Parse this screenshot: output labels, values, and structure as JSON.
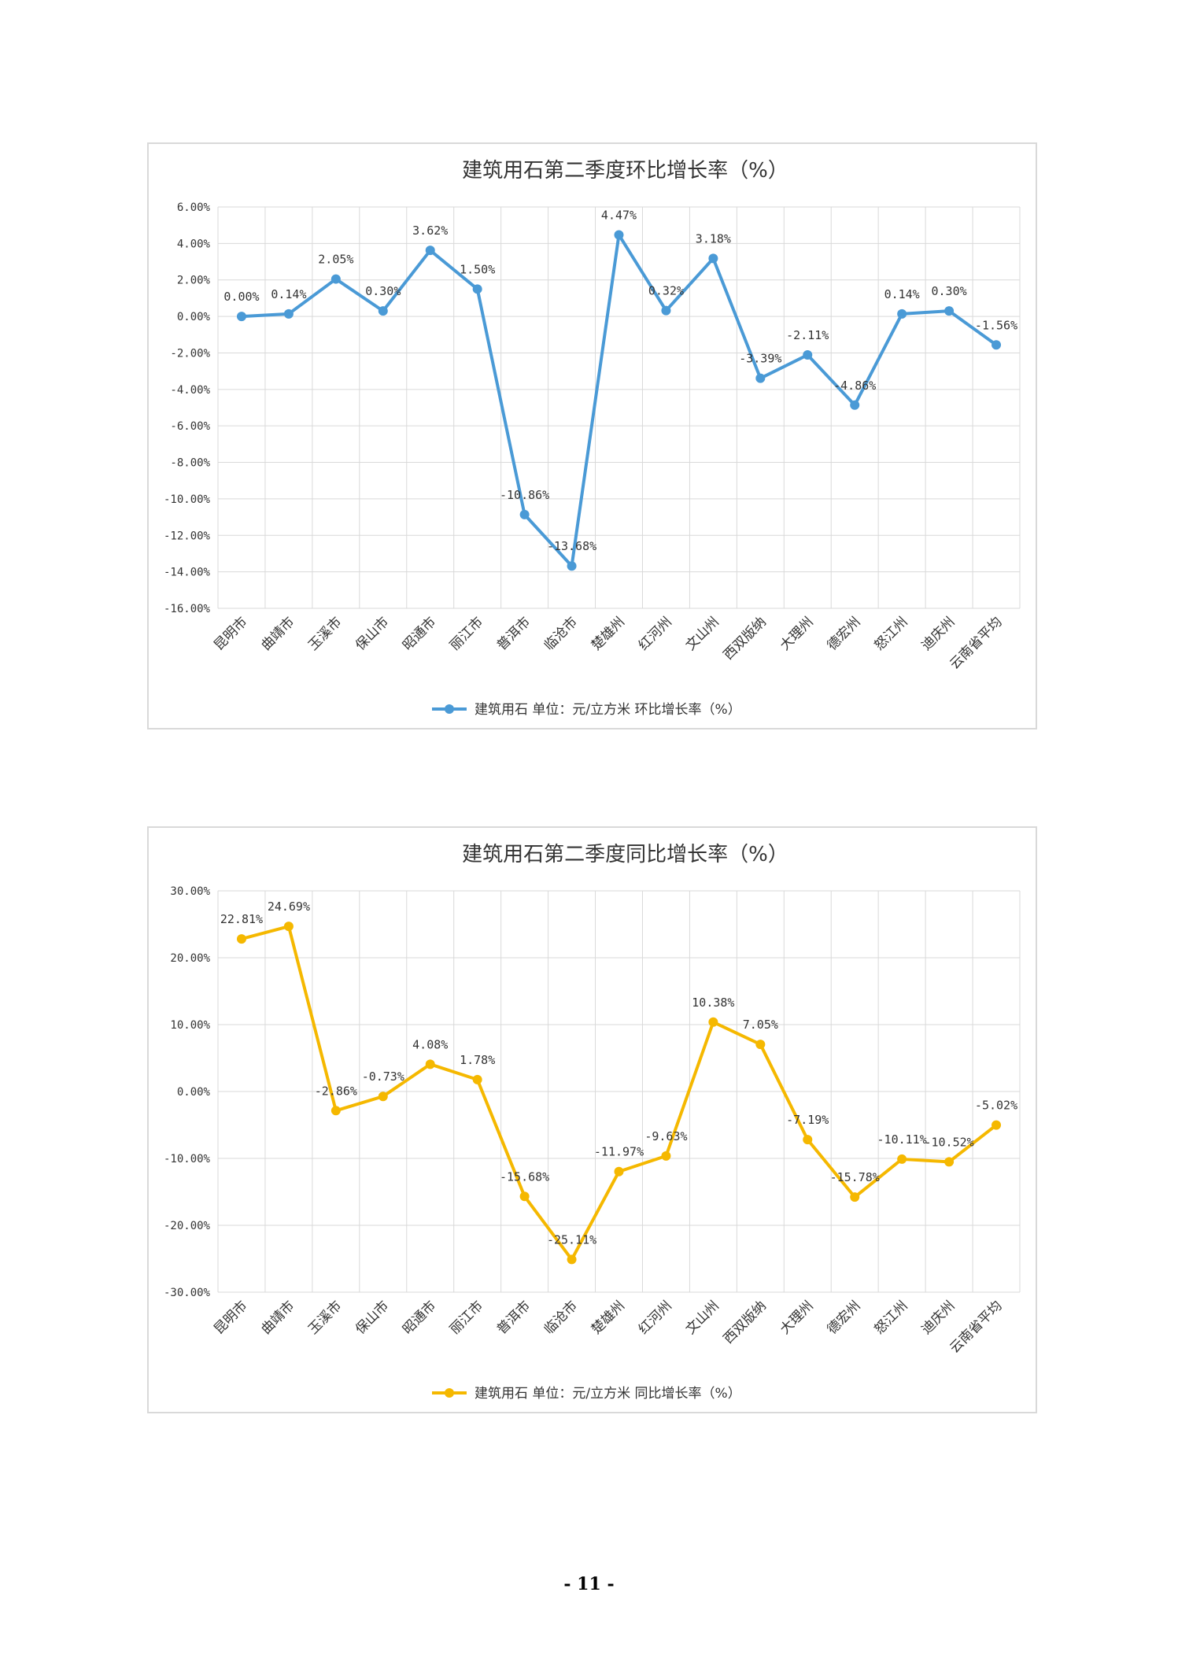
{
  "page_number": "- 11 -",
  "chart_data": [
    {
      "type": "line",
      "title": "建筑用石第二季度环比增长率（%）",
      "categories": [
        "昆明市",
        "曲靖市",
        "玉溪市",
        "保山市",
        "昭通市",
        "丽江市",
        "普洱市",
        "临沧市",
        "楚雄州",
        "红河州",
        "文山州",
        "西双版纳",
        "大理州",
        "德宏州",
        "怒江州",
        "迪庆州",
        "云南省平均"
      ],
      "series": [
        {
          "name": "建筑用石 单位：元/立方米 环比增长率（%）",
          "values": [
            0.0,
            0.14,
            2.05,
            0.3,
            3.62,
            1.5,
            -10.86,
            -13.68,
            4.47,
            0.32,
            3.18,
            -3.39,
            -2.11,
            -4.86,
            0.14,
            0.3,
            -1.56
          ],
          "labels": [
            "0.00%",
            "0.14%",
            "2.05%",
            "0.30%",
            "3.62%",
            "1.50%",
            "-10.86%",
            "-13.68%",
            "4.47%",
            "0.32%",
            "3.18%",
            "-3.39%",
            "-2.11%",
            "-4.86%",
            "0.14%",
            "0.30%",
            "-1.56%"
          ],
          "color": "#4a9ad6"
        }
      ],
      "ylim": [
        -16,
        6
      ],
      "yticks": [
        6,
        4,
        2,
        0,
        -2,
        -4,
        -6,
        -8,
        -10,
        -12,
        -14,
        -16
      ],
      "ytick_labels": [
        "6.00%",
        "4.00%",
        "2.00%",
        "0.00%",
        "-2.00%",
        "-4.00%",
        "-6.00%",
        "-8.00%",
        "-10.00%",
        "-12.00%",
        "-14.00%",
        "-16.00%"
      ],
      "grid": true,
      "legend_position": "bottom"
    },
    {
      "type": "line",
      "title": "建筑用石第二季度同比增长率（%）",
      "categories": [
        "昆明市",
        "曲靖市",
        "玉溪市",
        "保山市",
        "昭通市",
        "丽江市",
        "普洱市",
        "临沧市",
        "楚雄州",
        "红河州",
        "文山州",
        "西双版纳",
        "大理州",
        "德宏州",
        "怒江州",
        "迪庆州",
        "云南省平均"
      ],
      "series": [
        {
          "name": "建筑用石 单位：元/立方米 同比增长率（%）",
          "values": [
            22.81,
            24.69,
            -2.86,
            -0.73,
            4.08,
            1.78,
            -15.68,
            -25.11,
            -11.97,
            -9.63,
            10.38,
            7.05,
            -7.19,
            -15.78,
            -10.11,
            -10.52,
            -5.02
          ],
          "labels": [
            "22.81%",
            "24.69%",
            "-2.86%",
            "-0.73%",
            "4.08%",
            "1.78%",
            "-15.68%",
            "-25.11%",
            "-11.97%",
            "-9.63%",
            "10.38%",
            "7.05%",
            "-7.19%",
            "-15.78%",
            "-10.11%",
            "-10.52%",
            "-5.02%"
          ],
          "color": "#f5b800"
        }
      ],
      "ylim": [
        -30,
        30
      ],
      "yticks": [
        30,
        20,
        10,
        0,
        -10,
        -20,
        -30
      ],
      "ytick_labels": [
        "30.00%",
        "20.00%",
        "10.00%",
        "0.00%",
        "-10.00%",
        "-20.00%",
        "-30.00%"
      ],
      "grid": true,
      "legend_position": "bottom"
    }
  ]
}
